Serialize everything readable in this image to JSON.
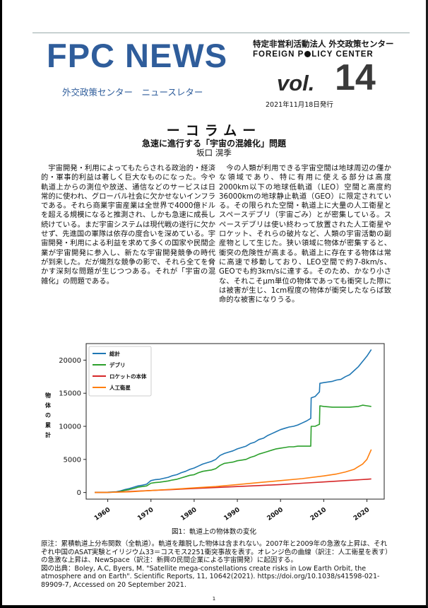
{
  "masthead": {
    "brand": "FPC NEWS",
    "org_ja": "特定非営利活動法人 外交政策センター",
    "org_en_before": "FOREIGN P",
    "org_en_after": "LICY CENTER",
    "newsletter": "外交政策センター　ニュースレター",
    "vol_word": "vol.",
    "vol_number": "14",
    "issued": "2021年11月18日発行"
  },
  "article": {
    "column_label": "ーコラムー",
    "headline": "急速に進行する「宇宙の混雑化」問題",
    "author": "坂口 滉季",
    "left_paragraph": "宇宙開発・利用によってもたらされる政治的・経済的・軍事的利益は著しく巨大なものになった。今や軌道上からの測位や放送、通信などのサービスは日常的に使われ、グローバル社会に欠かせないインフラである。それら商業宇宙産業は全世界で4000億ドルを超える規模になると推測され、しかも急速に成長し続けている。まだ宇宙システムは現代戦の遂行に欠かせず、先進国の軍隊は依存の度合いを深めている。宇宙開発・利用による利益を求めて多くの国家や民間企業が宇宙開発に参入し、新たな宇宙開発競争の時代が到来した。だが熾烈な競争の影で、それら全てを脅かす深刻な問題が生じつつある。それが「宇宙の混雑化」の問題である。",
    "right_paragraph": "今の人類が利用できる宇宙空間は地球周辺の僅かな領域であり、特に有用に使える部分は高度2000km以下の地球低軌道（LEO）空間と高度約36000kmの地球静止軌道（GEO）に限定されている。その限られた空間・軌道上に大量の人工衛星とスペースデブリ（宇宙ごみ）とが密集している。スペースデブリは使い終わって放置された人工衛星やロケット、それらの破片など、人類の宇宙活動の副産物として生じた。狭い領域に物体が密集すると、衝突の危険性が高まる。軌道上に存在する物体は常に高速で移動しており、LEO空間で約7-8km/s、GEOでも約3km/sに達する。そのため、かなり小さな、それこそμm単位の物体であっても衝突した際には被害が生じ、1cm程度の物体が衝突したならば致命的な被害になりうる。"
  },
  "figure": {
    "caption": "図1：軌道上の物体数の変化",
    "notes": [
      "原注：累積軌道上分布関数（全軌道）。軌道を離脱した物体は含まれない。2007年と2009年の急激な上昇は、それぞれ中国のASAT実験とイリジウム33＝コスモス2251衝突事故を表す。オレンジ色の曲線（訳注：人工衛星を表す）の急激な上昇は、NewSpace（訳注：新興の民間企業による宇宙開発）に起因する。",
      "図の出典：Boley, A.C, Byers, M. \"Satellite mega-constellations create risks in Low Earth Orbit, the atmosphere and on Earth\". Scientific Reports, 11, 10642(2021). https://doi.org/10.1038/s41598-021-89909-7, Accessed on 20 September 2021."
    ]
  },
  "chart_data": {
    "type": "line",
    "title": "",
    "xlabel": "",
    "ylabel": "物体の累計",
    "xlim": [
      1955,
      2024
    ],
    "ylim": [
      -1000,
      22500
    ],
    "x_ticks": [
      1960,
      1970,
      1980,
      1990,
      2000,
      2010,
      2020
    ],
    "y_ticks": [
      0,
      5000,
      10000,
      15000,
      20000
    ],
    "legend_position": "top-left",
    "grid": false,
    "series": [
      {
        "name": "総計",
        "color": "#1f77b4",
        "points": [
          [
            1957,
            0
          ],
          [
            1960,
            50
          ],
          [
            1962,
            120
          ],
          [
            1963,
            250
          ],
          [
            1964,
            450
          ],
          [
            1965,
            600
          ],
          [
            1966,
            800
          ],
          [
            1967,
            1000
          ],
          [
            1968,
            1100
          ],
          [
            1969,
            1250
          ],
          [
            1970,
            1800
          ],
          [
            1971,
            1950
          ],
          [
            1972,
            2000
          ],
          [
            1973,
            2150
          ],
          [
            1974,
            2300
          ],
          [
            1975,
            2550
          ],
          [
            1976,
            2700
          ],
          [
            1977,
            3000
          ],
          [
            1978,
            3200
          ],
          [
            1979,
            3500
          ],
          [
            1980,
            3700
          ],
          [
            1981,
            4000
          ],
          [
            1982,
            4300
          ],
          [
            1983,
            4500
          ],
          [
            1984,
            4700
          ],
          [
            1985,
            5000
          ],
          [
            1986,
            5600
          ],
          [
            1987,
            5900
          ],
          [
            1988,
            6100
          ],
          [
            1989,
            6300
          ],
          [
            1990,
            6600
          ],
          [
            1991,
            6800
          ],
          [
            1992,
            7000
          ],
          [
            1993,
            7400
          ],
          [
            1994,
            7600
          ],
          [
            1995,
            8000
          ],
          [
            1996,
            8200
          ],
          [
            1997,
            8600
          ],
          [
            1998,
            8900
          ],
          [
            1999,
            9200
          ],
          [
            2000,
            9500
          ],
          [
            2001,
            9700
          ],
          [
            2002,
            9900
          ],
          [
            2003,
            10000
          ],
          [
            2004,
            10200
          ],
          [
            2005,
            10500
          ],
          [
            2006,
            10800
          ],
          [
            2007,
            11200
          ],
          [
            2007.1,
            14300
          ],
          [
            2008,
            14500
          ],
          [
            2009,
            15200
          ],
          [
            2009.1,
            16500
          ],
          [
            2010,
            16600
          ],
          [
            2011,
            16700
          ],
          [
            2012,
            16800
          ],
          [
            2013,
            17000
          ],
          [
            2014,
            17100
          ],
          [
            2015,
            17500
          ],
          [
            2016,
            17800
          ],
          [
            2017,
            18400
          ],
          [
            2018,
            19000
          ],
          [
            2019,
            19800
          ],
          [
            2020,
            20600
          ],
          [
            2021,
            21600
          ]
        ]
      },
      {
        "name": "デブリ",
        "color": "#2ca02c",
        "points": [
          [
            1957,
            0
          ],
          [
            1960,
            20
          ],
          [
            1962,
            80
          ],
          [
            1963,
            180
          ],
          [
            1964,
            350
          ],
          [
            1965,
            450
          ],
          [
            1966,
            600
          ],
          [
            1967,
            800
          ],
          [
            1968,
            900
          ],
          [
            1969,
            1000
          ],
          [
            1970,
            1400
          ],
          [
            1971,
            1500
          ],
          [
            1972,
            1550
          ],
          [
            1973,
            1650
          ],
          [
            1974,
            1750
          ],
          [
            1975,
            1900
          ],
          [
            1976,
            2000
          ],
          [
            1977,
            2200
          ],
          [
            1978,
            2400
          ],
          [
            1979,
            2600
          ],
          [
            1980,
            2700
          ],
          [
            1981,
            3000
          ],
          [
            1982,
            3200
          ],
          [
            1983,
            3300
          ],
          [
            1984,
            3400
          ],
          [
            1985,
            3600
          ],
          [
            1986,
            4100
          ],
          [
            1987,
            4400
          ],
          [
            1988,
            4500
          ],
          [
            1989,
            4600
          ],
          [
            1990,
            4800
          ],
          [
            1991,
            4900
          ],
          [
            1992,
            5000
          ],
          [
            1993,
            5300
          ],
          [
            1994,
            5500
          ],
          [
            1995,
            5800
          ],
          [
            1996,
            6000
          ],
          [
            1997,
            6200
          ],
          [
            1998,
            6400
          ],
          [
            1999,
            6600
          ],
          [
            2000,
            6700
          ],
          [
            2001,
            6800
          ],
          [
            2002,
            6900
          ],
          [
            2003,
            6900
          ],
          [
            2004,
            7000
          ],
          [
            2005,
            7000
          ],
          [
            2006,
            7000
          ],
          [
            2007,
            7000
          ],
          [
            2007.1,
            10000
          ],
          [
            2008,
            10000
          ],
          [
            2009,
            10300
          ],
          [
            2009.1,
            13100
          ],
          [
            2010,
            13000
          ],
          [
            2012,
            12900
          ],
          [
            2014,
            12900
          ],
          [
            2016,
            12900
          ],
          [
            2018,
            13000
          ],
          [
            2019,
            13200
          ],
          [
            2020,
            13100
          ],
          [
            2021,
            13000
          ]
        ]
      },
      {
        "name": "ロケットの本体",
        "color": "#d62728",
        "points": [
          [
            1957,
            0
          ],
          [
            1960,
            20
          ],
          [
            1965,
            150
          ],
          [
            1970,
            300
          ],
          [
            1975,
            450
          ],
          [
            1980,
            600
          ],
          [
            1985,
            750
          ],
          [
            1990,
            900
          ],
          [
            1995,
            1050
          ],
          [
            2000,
            1200
          ],
          [
            2005,
            1400
          ],
          [
            2010,
            1600
          ],
          [
            2015,
            1800
          ],
          [
            2020,
            2000
          ],
          [
            2021,
            2050
          ]
        ]
      },
      {
        "name": "人工衛星",
        "color": "#ff7f0e",
        "points": [
          [
            1957,
            0
          ],
          [
            1960,
            30
          ],
          [
            1965,
            100
          ],
          [
            1970,
            300
          ],
          [
            1975,
            500
          ],
          [
            1980,
            700
          ],
          [
            1985,
            900
          ],
          [
            1990,
            1200
          ],
          [
            1995,
            1500
          ],
          [
            2000,
            1800
          ],
          [
            2005,
            2100
          ],
          [
            2010,
            2500
          ],
          [
            2013,
            2800
          ],
          [
            2015,
            3100
          ],
          [
            2017,
            3500
          ],
          [
            2018,
            3900
          ],
          [
            2019,
            4300
          ],
          [
            2020,
            5000
          ],
          [
            2021,
            6500
          ]
        ]
      }
    ]
  }
}
